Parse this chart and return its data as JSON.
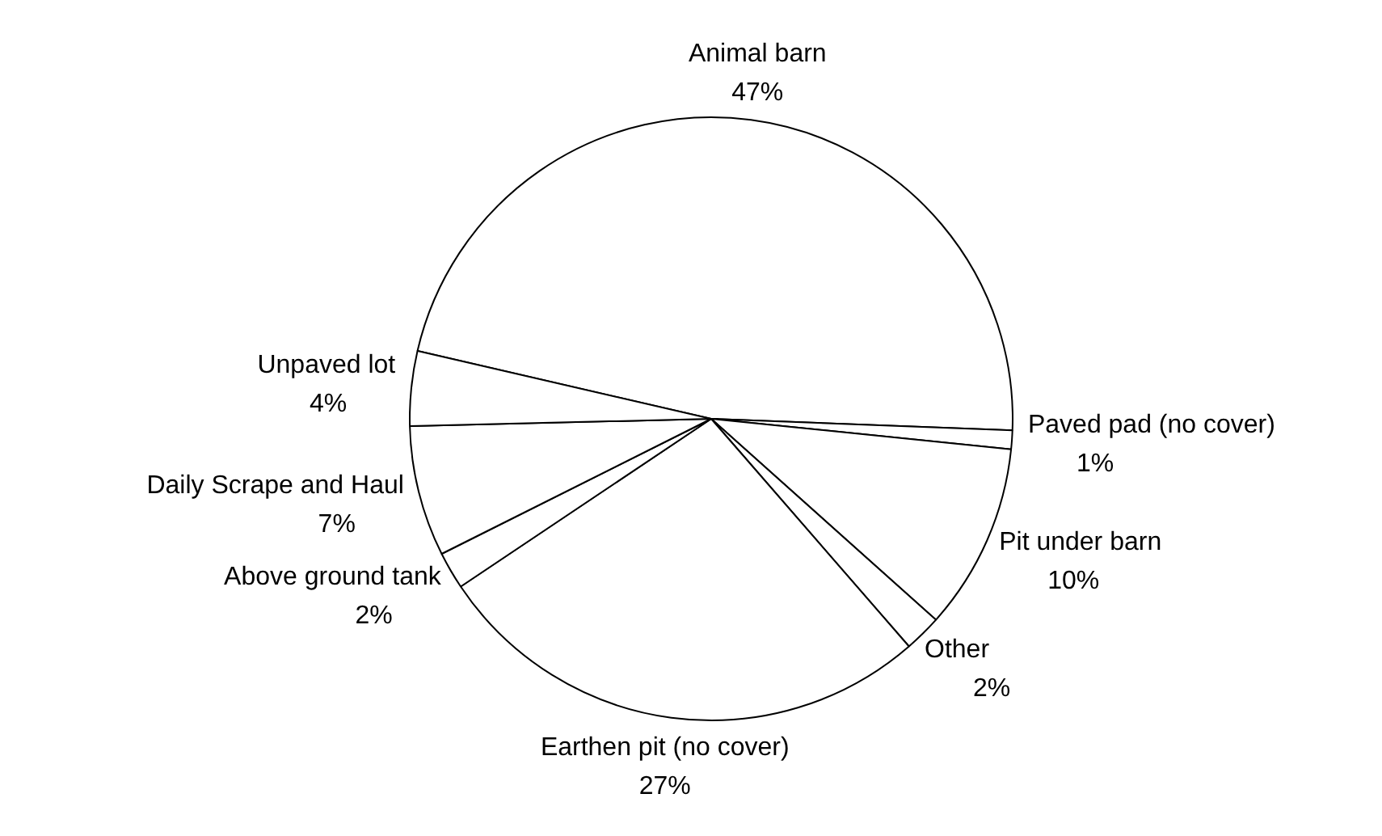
{
  "chart_data": {
    "type": "pie",
    "categories": [
      "Animal barn",
      "Paved pad (no cover)",
      "Pit under barn",
      "Other",
      "Earthen pit (no cover)",
      "Above ground tank",
      "Daily Scrape and Haul",
      "Unpaved lot"
    ],
    "values": [
      47,
      1,
      10,
      2,
      27,
      2,
      7,
      4
    ],
    "colors": [
      "#ffffff",
      "#ffffff",
      "#ffffff",
      "#ffffff",
      "#ffffff",
      "#ffffff",
      "#ffffff",
      "#ffffff"
    ],
    "value_labels": [
      "47%",
      "1%",
      "10%",
      "2%",
      "27%",
      "2%",
      "7%",
      "4%"
    ],
    "legend": false
  }
}
